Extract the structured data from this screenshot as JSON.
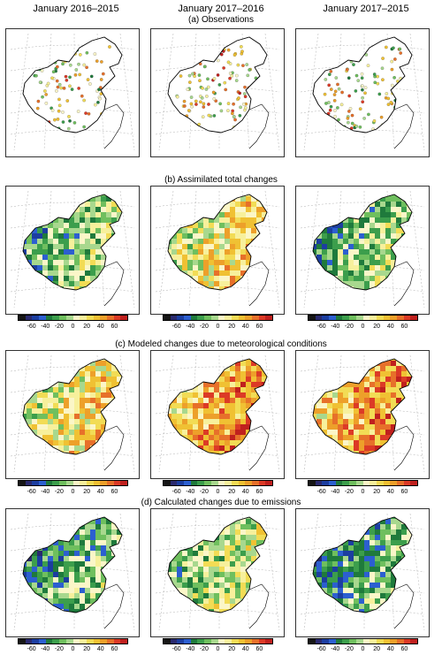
{
  "columns": [
    "January 2016–2015",
    "January 2017–2016",
    "January 2017–2015"
  ],
  "sections": [
    "(a) Observations",
    "(b) Assimilated total changes",
    "(c) Modeled changes due to meteorological conditions",
    "(d) Calculated changes due to emissions"
  ],
  "colorbar": {
    "ticks": [
      "-60",
      "-40",
      "-20",
      "0",
      "20",
      "40",
      "60"
    ],
    "colors": [
      "#161616",
      "#2a2a6e",
      "#1c3ea0",
      "#2c5fd0",
      "#1f7a3c",
      "#3c9e4c",
      "#6fbf5e",
      "#a8d88e",
      "#fbf6c8",
      "#f7f09c",
      "#f2dc55",
      "#f0c133",
      "#eda02a",
      "#e7702a",
      "#dc3a26",
      "#c0201e"
    ]
  }
}
